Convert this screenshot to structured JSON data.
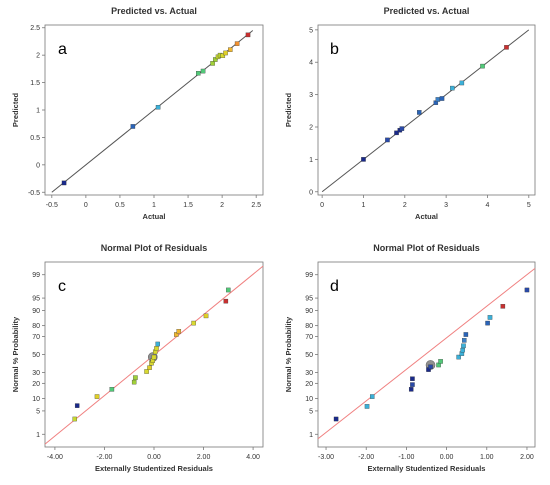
{
  "chart_data": [
    {
      "panel_label": "a",
      "type": "scatter",
      "title": "Predicted vs. Actual",
      "xlabel": "Actual",
      "ylabel": "Predicted",
      "xlim": [
        -0.6,
        2.6
      ],
      "ylim": [
        -0.55,
        2.55
      ],
      "xticks": [
        -0.5,
        0,
        0.5,
        1,
        1.5,
        2,
        2.5
      ],
      "xtick_labels": [
        "-0.5",
        "0",
        "0.5",
        "1",
        "1.5",
        "2",
        "2.5"
      ],
      "yticks": [
        -0.5,
        0,
        0.5,
        1,
        1.5,
        2,
        2.5
      ],
      "ytick_labels": [
        "-0.5",
        "0",
        "0.5",
        "1",
        "1.5",
        "2",
        "2.5"
      ],
      "reference_line": {
        "from": [
          -0.5,
          -0.5
        ],
        "to": [
          2.45,
          2.45
        ],
        "color": "#555555"
      },
      "points": [
        {
          "x": -0.32,
          "y": -0.33,
          "color": "#1a2a8a"
        },
        {
          "x": 0.69,
          "y": 0.7,
          "color": "#2a64b8"
        },
        {
          "x": 1.06,
          "y": 1.05,
          "color": "#3cb0d8"
        },
        {
          "x": 1.65,
          "y": 1.67,
          "color": "#52c878"
        },
        {
          "x": 1.72,
          "y": 1.71,
          "color": "#52c878"
        },
        {
          "x": 1.86,
          "y": 1.85,
          "color": "#a0d038"
        },
        {
          "x": 1.9,
          "y": 1.92,
          "color": "#a0d038"
        },
        {
          "x": 1.94,
          "y": 1.97,
          "color": "#c8d830"
        },
        {
          "x": 1.97,
          "y": 2.0,
          "color": "#b8d030"
        },
        {
          "x": 2.01,
          "y": 1.99,
          "color": "#d8d830"
        },
        {
          "x": 2.05,
          "y": 2.04,
          "color": "#e0d028"
        },
        {
          "x": 2.12,
          "y": 2.1,
          "color": "#f0b830"
        },
        {
          "x": 2.22,
          "y": 2.21,
          "color": "#f09030"
        },
        {
          "x": 2.38,
          "y": 2.37,
          "color": "#c83030"
        }
      ]
    },
    {
      "panel_label": "b",
      "type": "scatter",
      "title": "Predicted vs. Actual",
      "xlabel": "Actual",
      "ylabel": "Predicted",
      "xlim": [
        -0.1,
        5.15
      ],
      "ylim": [
        -0.1,
        5.15
      ],
      "xticks": [
        0,
        1,
        2,
        3,
        4,
        5
      ],
      "xtick_labels": [
        "0",
        "1",
        "2",
        "3",
        "4",
        "5"
      ],
      "yticks": [
        0,
        1,
        2,
        3,
        4,
        5
      ],
      "ytick_labels": [
        "0",
        "1",
        "2",
        "3",
        "4",
        "5"
      ],
      "reference_line": {
        "from": [
          0,
          0
        ],
        "to": [
          5,
          5
        ],
        "color": "#555555"
      },
      "points": [
        {
          "x": 1.0,
          "y": 1.0,
          "color": "#1a2a8a"
        },
        {
          "x": 1.58,
          "y": 1.6,
          "color": "#2a4aa8"
        },
        {
          "x": 1.8,
          "y": 1.82,
          "color": "#1a2a8a"
        },
        {
          "x": 1.88,
          "y": 1.9,
          "color": "#1a2a8a"
        },
        {
          "x": 1.93,
          "y": 1.95,
          "color": "#2a4aa8"
        },
        {
          "x": 2.35,
          "y": 2.45,
          "color": "#2a64b8"
        },
        {
          "x": 2.75,
          "y": 2.75,
          "color": "#2a64b8"
        },
        {
          "x": 2.8,
          "y": 2.85,
          "color": "#3a80c8"
        },
        {
          "x": 2.9,
          "y": 2.88,
          "color": "#2a64b8"
        },
        {
          "x": 3.15,
          "y": 3.2,
          "color": "#3cb0d8"
        },
        {
          "x": 3.38,
          "y": 3.36,
          "color": "#3cb0d8"
        },
        {
          "x": 3.88,
          "y": 3.88,
          "color": "#52c878"
        },
        {
          "x": 4.46,
          "y": 4.46,
          "color": "#c83030"
        }
      ]
    },
    {
      "panel_label": "c",
      "type": "scatter",
      "title": "Normal Plot of Residuals",
      "xlabel": "Externally Studentized Residuals",
      "ylabel": "Normal % Probability",
      "xlim": [
        -4.4,
        4.4
      ],
      "ylim": [
        0.35,
        99.65
      ],
      "y_scale": "normal-probability",
      "xticks": [
        -4,
        -2,
        0,
        2,
        4
      ],
      "xtick_labels": [
        "-4.00",
        "-2.00",
        "0.00",
        "2.00",
        "4.00"
      ],
      "yticks": [
        1,
        5,
        10,
        20,
        30,
        50,
        70,
        80,
        90,
        95,
        99
      ],
      "ytick_labels": [
        "1",
        "5",
        "10",
        "20",
        "30",
        "50",
        "70",
        "80",
        "90",
        "95",
        "99"
      ],
      "reference_line": {
        "from": [
          -4.4,
          0.45
        ],
        "to": [
          4.4,
          99.5
        ],
        "color": "#f08080"
      },
      "points": [
        {
          "x": -3.2,
          "y": 3.0,
          "color": "#c8d830"
        },
        {
          "x": -3.1,
          "y": 6.8,
          "color": "#1a2a8a"
        },
        {
          "x": -2.3,
          "y": 11.0,
          "color": "#e0d028"
        },
        {
          "x": -1.7,
          "y": 15.5,
          "color": "#52c878"
        },
        {
          "x": -0.8,
          "y": 21.0,
          "color": "#a0d038"
        },
        {
          "x": -0.75,
          "y": 25.0,
          "color": "#a0d038"
        },
        {
          "x": -0.3,
          "y": 31.0,
          "color": "#d8d830"
        },
        {
          "x": -0.18,
          "y": 35.0,
          "color": "#e0d028"
        },
        {
          "x": -0.1,
          "y": 40.0,
          "color": "#d8d830"
        },
        {
          "x": -0.05,
          "y": 43.0,
          "color": "#d8d830"
        },
        {
          "x": 0.0,
          "y": 47.0,
          "color": "#d8d830"
        },
        {
          "x": 0.05,
          "y": 53.0,
          "color": "#d8d830"
        },
        {
          "x": 0.1,
          "y": 57.0,
          "color": "#d8d830"
        },
        {
          "x": 0.15,
          "y": 62.0,
          "color": "#3cb0d8"
        },
        {
          "x": 0.9,
          "y": 72.0,
          "color": "#f0b830"
        },
        {
          "x": 1.0,
          "y": 75.0,
          "color": "#f0b830"
        },
        {
          "x": 1.6,
          "y": 82.0,
          "color": "#d8d830"
        },
        {
          "x": 2.1,
          "y": 87.0,
          "color": "#e0d028"
        },
        {
          "x": 2.9,
          "y": 94.0,
          "color": "#c83030"
        },
        {
          "x": 3.0,
          "y": 97.0,
          "color": "#52c878"
        }
      ],
      "highlight_point": {
        "x": -0.05,
        "y": 47.0,
        "color": "#909090"
      }
    },
    {
      "panel_label": "d",
      "type": "scatter",
      "title": "Normal Plot of Residuals",
      "xlabel": "Externally Studentized Residuals",
      "ylabel": "Normal % Probability",
      "xlim": [
        -3.2,
        2.2
      ],
      "ylim": [
        0.35,
        99.65
      ],
      "y_scale": "normal-probability",
      "xticks": [
        -3,
        -2,
        -1,
        0,
        1,
        2
      ],
      "xtick_labels": [
        "-3.00",
        "-2.00",
        "-1.00",
        "0.00",
        "1.00",
        "2.00"
      ],
      "yticks": [
        1,
        5,
        10,
        20,
        30,
        50,
        70,
        80,
        90,
        95,
        99
      ],
      "ytick_labels": [
        "1",
        "5",
        "10",
        "20",
        "30",
        "50",
        "70",
        "80",
        "90",
        "95",
        "99"
      ],
      "reference_line": {
        "from": [
          -3.2,
          0.7
        ],
        "to": [
          2.2,
          99.4
        ],
        "color": "#f08080"
      },
      "points": [
        {
          "x": -2.75,
          "y": 3.0,
          "color": "#1a2a8a"
        },
        {
          "x": -1.98,
          "y": 6.5,
          "color": "#3cb0d8"
        },
        {
          "x": -1.85,
          "y": 11.0,
          "color": "#3cb0d8"
        },
        {
          "x": -0.88,
          "y": 15.5,
          "color": "#1a2a8a"
        },
        {
          "x": -0.85,
          "y": 19.0,
          "color": "#2a4aa8"
        },
        {
          "x": -0.85,
          "y": 24.0,
          "color": "#1a2a8a"
        },
        {
          "x": -0.45,
          "y": 33.0,
          "color": "#1a2a8a"
        },
        {
          "x": -0.4,
          "y": 36.0,
          "color": "#2a4aa8"
        },
        {
          "x": -0.2,
          "y": 38.0,
          "color": "#52c878"
        },
        {
          "x": -0.15,
          "y": 42.0,
          "color": "#52c878"
        },
        {
          "x": 0.3,
          "y": 47.0,
          "color": "#3cb0d8"
        },
        {
          "x": 0.38,
          "y": 51.0,
          "color": "#3cb0d8"
        },
        {
          "x": 0.4,
          "y": 55.0,
          "color": "#3cb0d8"
        },
        {
          "x": 0.42,
          "y": 60.0,
          "color": "#3cb0d8"
        },
        {
          "x": 0.44,
          "y": 66.0,
          "color": "#3a80c8"
        },
        {
          "x": 0.48,
          "y": 72.0,
          "color": "#2a64b8"
        },
        {
          "x": 1.02,
          "y": 82.0,
          "color": "#2a64b8"
        },
        {
          "x": 1.08,
          "y": 86.0,
          "color": "#3cb0d8"
        },
        {
          "x": 1.4,
          "y": 92.0,
          "color": "#c83030"
        },
        {
          "x": 2.0,
          "y": 97.0,
          "color": "#2a4aa8"
        }
      ],
      "highlight_point": {
        "x": -0.4,
        "y": 38.0,
        "color": "#909090"
      }
    }
  ]
}
